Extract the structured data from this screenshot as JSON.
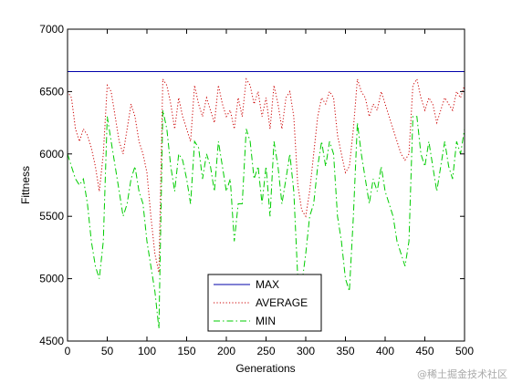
{
  "chart_data": {
    "type": "line",
    "title": "",
    "xlabel": "Generations",
    "ylabel": "Fittness",
    "xlim": [
      0,
      500
    ],
    "ylim": [
      4500,
      7000
    ],
    "xticks": [
      0,
      50,
      100,
      150,
      200,
      250,
      300,
      350,
      400,
      450,
      500
    ],
    "yticks": [
      4500,
      5000,
      5500,
      6000,
      6500,
      7000
    ],
    "grid": false,
    "legend_position": "bottom-center",
    "series": [
      {
        "name": "MAX",
        "color": "#0000aa",
        "style": "solid",
        "x": [
          0,
          500
        ],
        "y": [
          6660,
          6660
        ]
      },
      {
        "name": "AVERAGE",
        "color": "#cc0000",
        "style": "dotted",
        "x": [
          0,
          5,
          10,
          15,
          20,
          25,
          30,
          35,
          40,
          45,
          50,
          55,
          60,
          65,
          70,
          75,
          80,
          85,
          90,
          95,
          100,
          105,
          110,
          115,
          120,
          125,
          130,
          135,
          140,
          145,
          150,
          155,
          160,
          165,
          170,
          175,
          180,
          185,
          190,
          195,
          200,
          205,
          210,
          215,
          220,
          225,
          230,
          235,
          240,
          245,
          250,
          255,
          260,
          265,
          270,
          275,
          280,
          285,
          290,
          295,
          300,
          305,
          310,
          315,
          320,
          325,
          330,
          335,
          340,
          345,
          350,
          355,
          360,
          365,
          370,
          375,
          380,
          385,
          390,
          395,
          400,
          405,
          410,
          415,
          420,
          425,
          430,
          435,
          440,
          445,
          450,
          455,
          460,
          465,
          470,
          475,
          480,
          485,
          490,
          495,
          500
        ],
        "y": [
          6500,
          6450,
          6200,
          6100,
          6200,
          6150,
          6050,
          5900,
          5700,
          6000,
          6550,
          6500,
          6300,
          6100,
          6000,
          6200,
          6400,
          6300,
          6100,
          6000,
          5850,
          5500,
          5200,
          5050,
          6600,
          6550,
          6400,
          6200,
          6450,
          6300,
          6200,
          6100,
          6550,
          6400,
          6300,
          6450,
          6350,
          6250,
          6550,
          6400,
          6300,
          6350,
          6200,
          6450,
          6300,
          6600,
          6550,
          6400,
          6500,
          6300,
          6450,
          6200,
          6550,
          6400,
          6200,
          6450,
          6500,
          6300,
          5750,
          5550,
          5500,
          5700,
          6000,
          6300,
          6450,
          6400,
          6500,
          6450,
          6150,
          6000,
          5850,
          5900,
          6200,
          6600,
          6500,
          6450,
          6300,
          6400,
          6350,
          6500,
          6400,
          6300,
          6200,
          6100,
          6000,
          5950,
          6000,
          6550,
          6600,
          6450,
          6350,
          6450,
          6400,
          6250,
          6350,
          6450,
          6400,
          6350,
          6500,
          6450,
          6550
        ]
      },
      {
        "name": "MIN",
        "color": "#00cc00",
        "style": "dashdot",
        "x": [
          0,
          5,
          10,
          15,
          20,
          25,
          30,
          35,
          40,
          45,
          50,
          55,
          60,
          65,
          70,
          75,
          80,
          85,
          90,
          95,
          100,
          105,
          110,
          115,
          120,
          125,
          130,
          135,
          140,
          145,
          150,
          155,
          160,
          165,
          170,
          175,
          180,
          185,
          190,
          195,
          200,
          205,
          210,
          215,
          220,
          225,
          230,
          235,
          240,
          245,
          250,
          255,
          260,
          265,
          270,
          275,
          280,
          285,
          290,
          295,
          300,
          305,
          310,
          315,
          320,
          325,
          330,
          335,
          340,
          345,
          350,
          355,
          360,
          365,
          370,
          375,
          380,
          385,
          390,
          395,
          400,
          405,
          410,
          415,
          420,
          425,
          430,
          435,
          440,
          445,
          450,
          455,
          460,
          465,
          470,
          475,
          480,
          485,
          490,
          495,
          500
        ],
        "y": [
          6000,
          5900,
          5800,
          5750,
          5800,
          5600,
          5300,
          5100,
          5000,
          5300,
          6300,
          6100,
          5900,
          5700,
          5500,
          5600,
          5800,
          5900,
          5700,
          5600,
          5300,
          5100,
          4900,
          4600,
          6350,
          6200,
          5900,
          5700,
          6000,
          5950,
          5800,
          5600,
          6100,
          6050,
          5800,
          6000,
          5900,
          5700,
          6100,
          5900,
          5700,
          5800,
          5300,
          5600,
          5600,
          6200,
          6100,
          5800,
          5900,
          5600,
          5900,
          5500,
          6100,
          5900,
          5600,
          5800,
          6000,
          5700,
          5000,
          4950,
          5200,
          5500,
          5600,
          5900,
          6100,
          5900,
          6100,
          6000,
          5500,
          5300,
          5000,
          4900,
          5500,
          6250,
          6000,
          5800,
          5600,
          5800,
          5700,
          5900,
          5700,
          5600,
          5500,
          5300,
          5200,
          5100,
          5300,
          6300,
          6300,
          6000,
          5900,
          6100,
          5900,
          5700,
          5900,
          6100,
          5900,
          5800,
          6100,
          6000,
          6200
        ]
      }
    ]
  },
  "watermark": "@稀土掘金技术社区"
}
